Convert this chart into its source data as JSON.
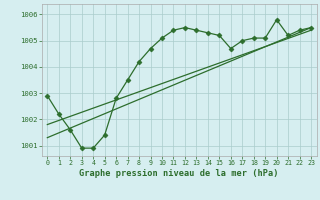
{
  "title": "Graphe pression niveau de la mer (hPa)",
  "background_color": "#d6eef0",
  "grid_color": "#aacccc",
  "line_color": "#2d6e2d",
  "xlim": [
    -0.5,
    23.5
  ],
  "ylim": [
    1000.6,
    1006.4
  ],
  "yticks": [
    1001,
    1002,
    1003,
    1004,
    1005,
    1006
  ],
  "xticks": [
    0,
    1,
    2,
    3,
    4,
    5,
    6,
    7,
    8,
    9,
    10,
    11,
    12,
    13,
    14,
    15,
    16,
    17,
    18,
    19,
    20,
    21,
    22,
    23
  ],
  "series1": {
    "x": [
      0,
      1,
      2,
      3,
      4,
      5,
      6,
      7,
      8,
      9,
      10,
      11,
      12,
      13,
      14,
      15,
      16,
      17,
      18,
      19,
      20,
      21,
      22,
      23
    ],
    "y": [
      1002.9,
      1002.2,
      1001.6,
      1000.9,
      1000.9,
      1001.4,
      1002.8,
      1003.5,
      1004.2,
      1004.7,
      1005.1,
      1005.4,
      1005.5,
      1005.4,
      1005.3,
      1005.2,
      1004.7,
      1005.0,
      1005.1,
      1005.1,
      1005.8,
      1005.2,
      1005.4,
      1005.5
    ]
  },
  "series2": {
    "x": [
      0,
      23
    ],
    "y": [
      1001.8,
      1005.4
    ]
  },
  "series3": {
    "x": [
      0,
      23
    ],
    "y": [
      1001.3,
      1005.5
    ]
  }
}
